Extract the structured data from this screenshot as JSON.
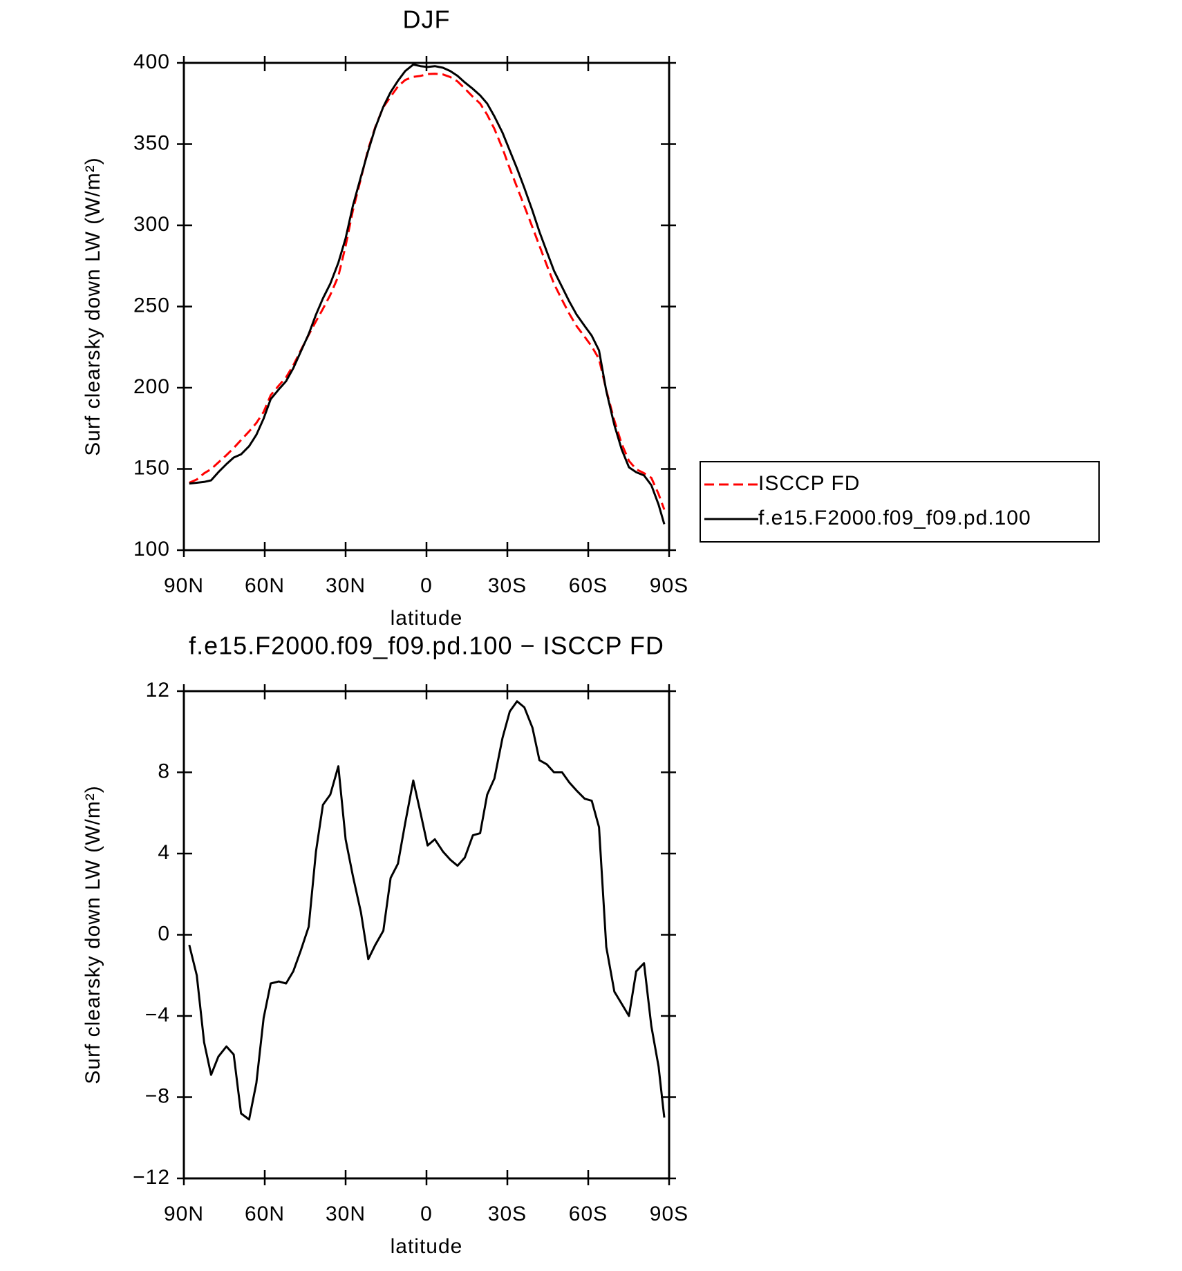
{
  "chart_data": [
    {
      "type": "line",
      "title": "DJF",
      "xlabel": "latitude",
      "ylabel": "Surf clearsky down LW (W/m²)",
      "x": [
        88,
        85.2,
        82.5,
        79.9,
        77.2,
        74.2,
        71.5,
        68.8,
        65.8,
        63.1,
        60.4,
        57.8,
        54.8,
        52.1,
        49.4,
        46.7,
        43.7,
        41,
        38.4,
        35.7,
        32.7,
        30,
        27.3,
        24.3,
        21.6,
        19,
        16,
        13.3,
        10.6,
        7.9,
        4.9,
        2.2,
        -0.4,
        -3.1,
        -6.1,
        -8.8,
        -11.5,
        -14.2,
        -17.2,
        -19.9,
        -22.5,
        -25.2,
        -28.2,
        -30.9,
        -33.6,
        -36.3,
        -39.3,
        -41.9,
        -44.6,
        -47.3,
        -50.3,
        -53,
        -55.7,
        -58.7,
        -61.3,
        -64,
        -66.7,
        -69.7,
        -72.4,
        -75.1,
        -77.8,
        -80.7,
        -83.4,
        -86.1,
        -88.2
      ],
      "series": [
        {
          "name": "ISCCP FD",
          "color": "#ff0000",
          "line_style": "dashed",
          "values": [
            141.5,
            143.5,
            147.3,
            149.9,
            154,
            158.5,
            162.9,
            167.8,
            173.1,
            178.3,
            185.1,
            195.4,
            201.3,
            206.4,
            213.8,
            222.8,
            232.6,
            240.9,
            248.6,
            257.1,
            268.7,
            287.3,
            309.1,
            328.9,
            347.2,
            360.5,
            372.8,
            379.2,
            385.5,
            389.5,
            391.4,
            392,
            393.1,
            393.3,
            392.9,
            391.3,
            388.6,
            384.2,
            379.1,
            375,
            368.1,
            359.3,
            347.3,
            335,
            323.5,
            311.8,
            298.8,
            287.4,
            275.6,
            264,
            254,
            245.5,
            237.9,
            231.3,
            225.4,
            217.7,
            198.6,
            179.8,
            165.4,
            155,
            149.8,
            147.4,
            144.5,
            134.5,
            125
          ]
        },
        {
          "name": "f.e15.F2000.f09_f09.pd.100",
          "color": "#000000",
          "line_style": "solid",
          "values": [
            141,
            141.5,
            142,
            143,
            148,
            153,
            157,
            159,
            164,
            171,
            181,
            193,
            199,
            204,
            212,
            222,
            233,
            245,
            255,
            264,
            277,
            292,
            312,
            330,
            346,
            360,
            373,
            382,
            389,
            395,
            399,
            398,
            397.5,
            398,
            397,
            395,
            392,
            388,
            384,
            380,
            375,
            367,
            357,
            346,
            335,
            323,
            309,
            296,
            284,
            272,
            262,
            253,
            245,
            238,
            232,
            223,
            198,
            177,
            162,
            151,
            148,
            146,
            140,
            128,
            116
          ]
        }
      ],
      "xlim": [
        90,
        -90
      ],
      "xticks": [
        {
          "value": 90,
          "label": "90N"
        },
        {
          "value": 60,
          "label": "60N"
        },
        {
          "value": 30,
          "label": "30N"
        },
        0,
        {
          "value": -30,
          "label": "30S"
        },
        {
          "value": -60,
          "label": "60S"
        },
        {
          "value": -90,
          "label": "90S"
        }
      ],
      "ylim": [
        100,
        400
      ],
      "yticks": [
        100,
        150,
        200,
        250,
        300,
        350,
        400
      ],
      "legend": "right",
      "grid": false
    },
    {
      "type": "line",
      "title": "f.e15.F2000.f09_f09.pd.100 − ISCCP FD",
      "xlabel": "latitude",
      "ylabel": "Surf clearsky down LW (W/m²)",
      "x": [
        88,
        85.2,
        82.5,
        79.9,
        77.2,
        74.2,
        71.5,
        68.8,
        65.8,
        63.1,
        60.4,
        57.8,
        54.8,
        52.1,
        49.4,
        46.7,
        43.7,
        41,
        38.4,
        35.7,
        32.7,
        30,
        27.3,
        24.3,
        21.6,
        19,
        16,
        13.3,
        10.6,
        7.9,
        4.9,
        2.2,
        -0.4,
        -3.1,
        -6.1,
        -8.8,
        -11.5,
        -14.2,
        -17.2,
        -19.9,
        -22.5,
        -25.2,
        -28.2,
        -30.9,
        -33.6,
        -36.3,
        -39.3,
        -41.9,
        -44.6,
        -47.3,
        -50.3,
        -53,
        -55.7,
        -58.7,
        -61.3,
        -64,
        -66.7,
        -69.7,
        -72.4,
        -75.1,
        -77.8,
        -80.7,
        -83.4,
        -86.1,
        -88.2
      ],
      "color": "#000000",
      "values": [
        -0.5,
        -2,
        -5.3,
        -6.9,
        -6,
        -5.5,
        -5.9,
        -8.8,
        -9.1,
        -7.3,
        -4.1,
        -2.4,
        -2.3,
        -2.4,
        -1.8,
        -0.8,
        0.4,
        4.1,
        6.4,
        6.9,
        8.3,
        4.7,
        2.9,
        1.1,
        -1.2,
        -0.5,
        0.2,
        2.8,
        3.5,
        5.5,
        7.6,
        6,
        4.4,
        4.7,
        4.1,
        3.7,
        3.4,
        3.8,
        4.9,
        5,
        6.9,
        7.7,
        9.7,
        11,
        11.5,
        11.2,
        10.2,
        8.6,
        8.4,
        8,
        8,
        7.5,
        7.1,
        6.7,
        6.6,
        5.3,
        -0.6,
        -2.8,
        -3.4,
        -4,
        -1.8,
        -1.4,
        -4.5,
        -6.5,
        -9
      ],
      "xlim": [
        90,
        -90
      ],
      "xticks": [
        {
          "value": 90,
          "label": "90N"
        },
        {
          "value": 60,
          "label": "60N"
        },
        {
          "value": 30,
          "label": "30N"
        },
        0,
        {
          "value": -30,
          "label": "30S"
        },
        {
          "value": -60,
          "label": "60S"
        },
        {
          "value": -90,
          "label": "90S"
        }
      ],
      "ylim": [
        -12,
        12
      ],
      "yticks": [
        {
          "value": -12,
          "label": "−12"
        },
        {
          "value": -8,
          "label": "−8"
        },
        {
          "value": -4,
          "label": "−4"
        },
        0,
        4,
        8,
        12
      ],
      "grid": false
    }
  ]
}
